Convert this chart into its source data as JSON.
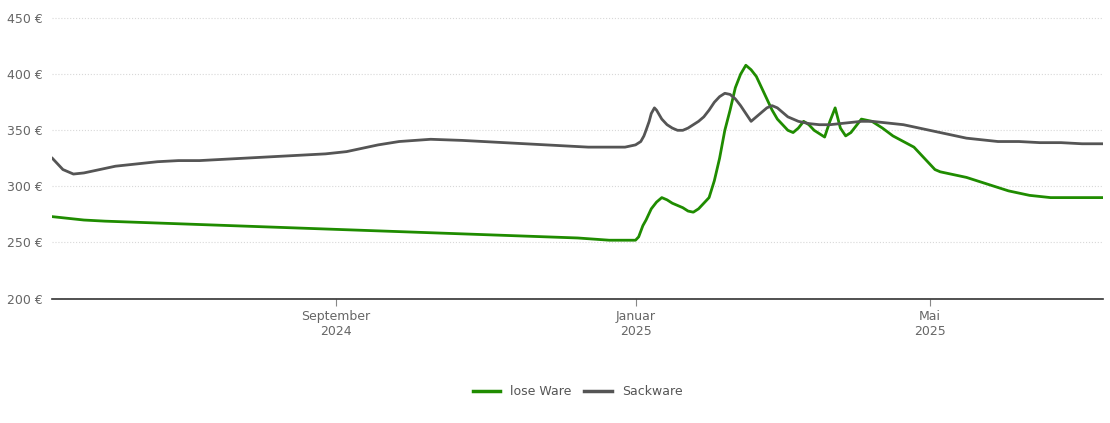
{
  "background_color": "#ffffff",
  "ylim": [
    200,
    460
  ],
  "yticks": [
    200,
    250,
    300,
    350,
    400,
    450
  ],
  "grid_color": "#d8d8d8",
  "x_tick_labels": [
    "September\n2024",
    "Januar\n2025",
    "Mai\n2025"
  ],
  "x_tick_positions": [
    0.27,
    0.555,
    0.835
  ],
  "legend_labels": [
    "lose Ware",
    "Sackware"
  ],
  "lose_ware_color": "#1f8c00",
  "sackware_color": "#555555",
  "line_width": 2.0,
  "lose_ware_x": [
    0.0,
    0.01,
    0.02,
    0.03,
    0.05,
    0.08,
    0.11,
    0.14,
    0.17,
    0.2,
    0.23,
    0.26,
    0.29,
    0.32,
    0.35,
    0.38,
    0.41,
    0.44,
    0.47,
    0.5,
    0.53,
    0.545,
    0.548,
    0.55,
    0.552,
    0.555,
    0.558,
    0.562,
    0.565,
    0.57,
    0.575,
    0.58,
    0.585,
    0.59,
    0.595,
    0.6,
    0.605,
    0.61,
    0.615,
    0.62,
    0.625,
    0.63,
    0.635,
    0.64,
    0.645,
    0.65,
    0.655,
    0.66,
    0.665,
    0.67,
    0.675,
    0.68,
    0.685,
    0.69,
    0.695,
    0.7,
    0.705,
    0.71,
    0.715,
    0.72,
    0.725,
    0.73,
    0.735,
    0.74,
    0.745,
    0.75,
    0.755,
    0.76,
    0.765,
    0.77,
    0.78,
    0.79,
    0.8,
    0.81,
    0.82,
    0.83,
    0.838,
    0.84,
    0.845,
    0.85,
    0.86,
    0.87,
    0.88,
    0.89,
    0.9,
    0.91,
    0.92,
    0.93,
    0.94,
    0.95,
    0.96,
    0.97,
    0.98,
    0.99,
    1.0
  ],
  "lose_ware_y": [
    273,
    272,
    271,
    270,
    269,
    268,
    267,
    266,
    265,
    264,
    263,
    262,
    261,
    260,
    259,
    258,
    257,
    256,
    255,
    254,
    252,
    252,
    252,
    252,
    252,
    252,
    255,
    265,
    270,
    280,
    286,
    290,
    288,
    285,
    283,
    281,
    278,
    277,
    280,
    285,
    290,
    305,
    325,
    350,
    368,
    388,
    400,
    408,
    404,
    398,
    388,
    378,
    368,
    360,
    355,
    350,
    348,
    352,
    358,
    355,
    350,
    347,
    344,
    358,
    370,
    352,
    345,
    348,
    354,
    360,
    358,
    352,
    345,
    340,
    335,
    325,
    317,
    315,
    313,
    312,
    310,
    308,
    305,
    302,
    299,
    296,
    294,
    292,
    291,
    290,
    290,
    290,
    290,
    290,
    290
  ],
  "sackware_x": [
    0.0,
    0.01,
    0.02,
    0.03,
    0.04,
    0.05,
    0.06,
    0.08,
    0.1,
    0.12,
    0.14,
    0.16,
    0.18,
    0.2,
    0.22,
    0.24,
    0.26,
    0.27,
    0.28,
    0.29,
    0.3,
    0.31,
    0.33,
    0.36,
    0.39,
    0.41,
    0.43,
    0.45,
    0.47,
    0.49,
    0.51,
    0.53,
    0.545,
    0.55,
    0.555,
    0.56,
    0.563,
    0.565,
    0.568,
    0.57,
    0.573,
    0.575,
    0.58,
    0.585,
    0.59,
    0.595,
    0.6,
    0.605,
    0.61,
    0.615,
    0.62,
    0.625,
    0.63,
    0.635,
    0.64,
    0.645,
    0.65,
    0.655,
    0.66,
    0.665,
    0.67,
    0.675,
    0.68,
    0.685,
    0.69,
    0.695,
    0.7,
    0.705,
    0.71,
    0.715,
    0.72,
    0.73,
    0.74,
    0.75,
    0.76,
    0.77,
    0.78,
    0.79,
    0.8,
    0.81,
    0.82,
    0.83,
    0.84,
    0.85,
    0.86,
    0.87,
    0.88,
    0.9,
    0.92,
    0.94,
    0.96,
    0.98,
    1.0
  ],
  "sackware_y": [
    325,
    315,
    311,
    312,
    314,
    316,
    318,
    320,
    322,
    323,
    323,
    324,
    325,
    326,
    327,
    328,
    329,
    330,
    331,
    333,
    335,
    337,
    340,
    342,
    341,
    340,
    339,
    338,
    337,
    336,
    335,
    335,
    335,
    336,
    337,
    340,
    345,
    350,
    358,
    365,
    370,
    368,
    360,
    355,
    352,
    350,
    350,
    352,
    355,
    358,
    362,
    368,
    375,
    380,
    383,
    382,
    378,
    372,
    365,
    358,
    362,
    366,
    370,
    372,
    370,
    366,
    362,
    360,
    358,
    357,
    356,
    355,
    355,
    356,
    357,
    358,
    358,
    357,
    356,
    355,
    353,
    351,
    349,
    347,
    345,
    343,
    342,
    340,
    340,
    339,
    339,
    338,
    338
  ]
}
